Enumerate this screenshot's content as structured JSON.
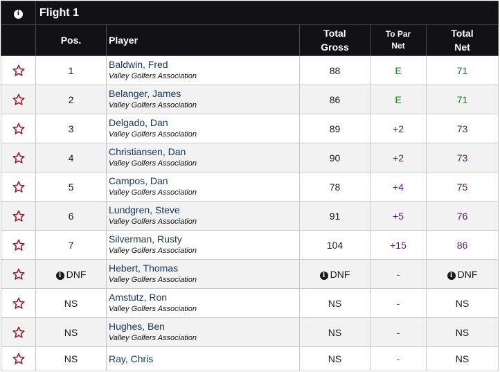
{
  "flight": {
    "title": "Flight 1",
    "info_icon": "info-circle-icon"
  },
  "columns": {
    "pos": "Pos.",
    "player": "Player",
    "gross_line1": "Total",
    "gross_line2": "Gross",
    "topar_line1": "To Par",
    "topar_line2": "Net",
    "net_line1": "Total",
    "net_line2": "Net"
  },
  "icons": {
    "favorite": "star-outline-icon",
    "info": "info-circle-icon"
  },
  "colors": {
    "header_bg": "#111116",
    "star": "#a0182a",
    "even_par": "#1b7a1b",
    "over_par": "#5a1a7a",
    "player_link": "#12365f"
  },
  "players": [
    {
      "pos": "1",
      "name": "Baldwin, Fred",
      "assoc": "Valley Golfers Association",
      "gross": "88",
      "to_par": "E",
      "net": "71"
    },
    {
      "pos": "2",
      "name": "Belanger, James",
      "assoc": "Valley Golfers Association",
      "gross": "86",
      "to_par": "E",
      "net": "71"
    },
    {
      "pos": "3",
      "name": "Delgado, Dan",
      "assoc": "Valley Golfers Association",
      "gross": "89",
      "to_par": "+2",
      "net": "73"
    },
    {
      "pos": "4",
      "name": "Christiansen, Dan",
      "assoc": "Valley Golfers Association",
      "gross": "90",
      "to_par": "+2",
      "net": "73"
    },
    {
      "pos": "5",
      "name": "Campos, Dan",
      "assoc": "Valley Golfers Association",
      "gross": "78",
      "to_par": "+4",
      "net": "75"
    },
    {
      "pos": "6",
      "name": "Lundgren, Steve",
      "assoc": "Valley Golfers Association",
      "gross": "91",
      "to_par": "+5",
      "net": "76"
    },
    {
      "pos": "7",
      "name": "Silverman, Rusty",
      "assoc": "Valley Golfers Association",
      "gross": "104",
      "to_par": "+15",
      "net": "86"
    },
    {
      "pos": "DNF",
      "name": "Hebert, Thomas",
      "assoc": "Valley Golfers Association",
      "gross": "DNF",
      "to_par": "-",
      "net": "DNF"
    },
    {
      "pos": "NS",
      "name": "Amstutz, Ron",
      "assoc": "Valley Golfers Association",
      "gross": "NS",
      "to_par": "-",
      "net": "NS"
    },
    {
      "pos": "NS",
      "name": "Hughes, Ben",
      "assoc": "Valley Golfers Association",
      "gross": "NS",
      "to_par": "-",
      "net": "NS"
    },
    {
      "pos": "NS",
      "name": "Ray, Chris",
      "assoc": "",
      "gross": "NS",
      "to_par": "-",
      "net": "NS"
    }
  ]
}
